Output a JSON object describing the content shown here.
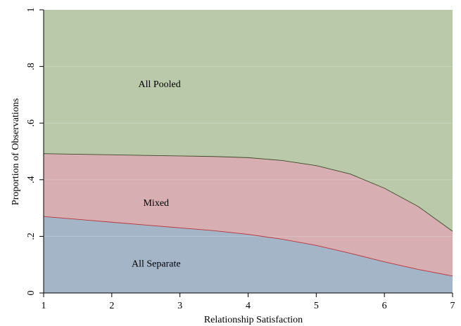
{
  "chart_data": {
    "type": "area",
    "stacked": true,
    "xlabel": "Relationship Satisfaction",
    "ylabel": "Proportion of Observations",
    "xlim": [
      1,
      7
    ],
    "ylim": [
      0,
      1
    ],
    "x_ticks": [
      "1",
      "2",
      "3",
      "4",
      "5",
      "6",
      "7"
    ],
    "y_ticks": [
      "0",
      ".2",
      ".4",
      ".6",
      ".8",
      "1"
    ],
    "grid": true,
    "x": [
      1,
      1.5,
      2,
      2.5,
      3,
      3.5,
      4,
      4.5,
      5,
      5.5,
      6,
      6.5,
      7
    ],
    "boundaries": {
      "separate_upper": [
        0.27,
        0.26,
        0.25,
        0.24,
        0.23,
        0.22,
        0.207,
        0.19,
        0.168,
        0.14,
        0.11,
        0.083,
        0.06
      ],
      "mixed_upper": [
        0.492,
        0.49,
        0.488,
        0.486,
        0.484,
        0.482,
        0.478,
        0.468,
        0.45,
        0.42,
        0.37,
        0.305,
        0.218
      ]
    },
    "series": [
      {
        "name": "All Separate",
        "color": "#a4b5c8",
        "values": [
          0.27,
          0.26,
          0.25,
          0.24,
          0.23,
          0.22,
          0.207,
          0.19,
          0.168,
          0.14,
          0.11,
          0.083,
          0.06
        ]
      },
      {
        "name": "Mixed",
        "color": "#d7aeb2",
        "values": [
          0.222,
          0.23,
          0.238,
          0.246,
          0.254,
          0.262,
          0.271,
          0.278,
          0.282,
          0.28,
          0.26,
          0.222,
          0.158
        ]
      },
      {
        "name": "All Pooled",
        "color": "#b9c9a9",
        "values": [
          0.508,
          0.51,
          0.512,
          0.514,
          0.516,
          0.518,
          0.522,
          0.532,
          0.55,
          0.58,
          0.63,
          0.695,
          0.782
        ]
      }
    ],
    "labels": [
      {
        "text": "All Pooled",
        "x": 2.7,
        "y": 0.74
      },
      {
        "text": "Mixed",
        "x": 2.65,
        "y": 0.32
      },
      {
        "text": "All Separate",
        "x": 2.65,
        "y": 0.105
      }
    ]
  }
}
